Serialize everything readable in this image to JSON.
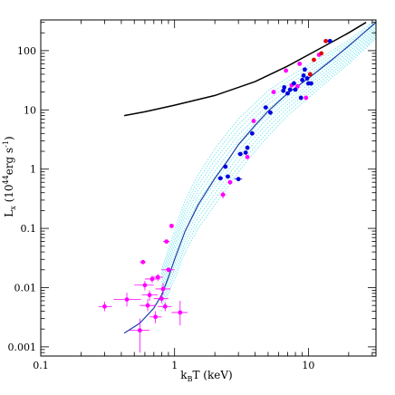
{
  "chart_data": {
    "type": "scatter",
    "xlabel_main": "k",
    "xlabel_sub": "B",
    "xlabel_rest": "T (keV)",
    "ylabel_main": "L",
    "ylabel_sub": "x",
    "ylabel_rest": " (10",
    "ylabel_sup": "44",
    "ylabel_unit": "erg  s",
    "ylabel_sup2": "-1",
    "ylabel_close": ")",
    "xscale": "log",
    "yscale": "log",
    "xlim": [
      0.1,
      32
    ],
    "ylim": [
      0.0007,
      330
    ],
    "x_ticks": [
      {
        "v": 0.1,
        "label": "0.1"
      },
      {
        "v": 1,
        "label": "1"
      },
      {
        "v": 10,
        "label": "10"
      }
    ],
    "y_ticks": [
      {
        "v": 0.001,
        "label": "0.001"
      },
      {
        "v": 0.01,
        "label": "0.01"
      },
      {
        "v": 0.1,
        "label": "0.1"
      },
      {
        "v": 1,
        "label": "1"
      },
      {
        "v": 10,
        "label": "10"
      },
      {
        "v": 100,
        "label": "100"
      }
    ],
    "colors": {
      "magenta": "#ff00ff",
      "blue": "#0000e0",
      "red": "#e00000",
      "black_curve": "#000000",
      "model_curve": "#1a3fa8",
      "band": "#33d6e6"
    },
    "curves": [
      {
        "color": "black",
        "x": [
          0.42,
          0.6,
          1,
          2,
          4,
          7,
          10,
          15,
          20,
          27
        ],
        "y": [
          8,
          9.3,
          12,
          17.5,
          30,
          55,
          85,
          140,
          200,
          300
        ]
      },
      {
        "color": "model",
        "x": [
          0.42,
          0.55,
          0.7,
          0.8,
          0.9,
          1.0,
          1.2,
          1.5,
          2.0,
          2.5,
          3,
          4,
          5,
          7,
          10,
          15,
          20,
          32
        ],
        "y": [
          0.0017,
          0.0025,
          0.0045,
          0.0075,
          0.015,
          0.03,
          0.09,
          0.25,
          0.7,
          1.4,
          2.6,
          5.5,
          9.5,
          19,
          34,
          70,
          120,
          300
        ]
      }
    ],
    "band": {
      "upper": {
        "x": [
          0.8,
          0.9,
          1.0,
          1.2,
          1.5,
          2.0,
          2.5,
          3,
          4,
          5,
          7,
          10,
          15,
          20,
          32
        ],
        "y": [
          0.02,
          0.045,
          0.09,
          0.3,
          0.8,
          2.2,
          4.2,
          7,
          13,
          21,
          35,
          57,
          100,
          150,
          330
        ]
      },
      "lower": {
        "x": [
          0.8,
          0.9,
          1.0,
          1.2,
          1.5,
          2.0,
          2.5,
          3,
          4,
          5,
          7,
          10,
          15,
          20,
          32
        ],
        "y": [
          0.004,
          0.008,
          0.014,
          0.04,
          0.1,
          0.25,
          0.5,
          0.9,
          2.0,
          3.6,
          8,
          16,
          35,
          60,
          160
        ]
      }
    },
    "points": [
      {
        "x": 0.3,
        "y": 0.0048,
        "xe": [
          0.27,
          0.34
        ],
        "ye": [
          0.004,
          0.0058
        ],
        "c": "magenta"
      },
      {
        "x": 0.44,
        "y": 0.0063,
        "xe": [
          0.35,
          0.56
        ],
        "ye": [
          0.0048,
          0.0082
        ],
        "c": "magenta"
      },
      {
        "x": 0.55,
        "y": 0.0019,
        "xe": [
          0.46,
          0.65
        ],
        "ye": [
          0.0008,
          0.003
        ],
        "c": "magenta"
      },
      {
        "x": 0.58,
        "y": 0.027,
        "xe": [
          0.55,
          0.61
        ],
        "ye": [
          0.025,
          0.029
        ],
        "c": "magenta"
      },
      {
        "x": 0.6,
        "y": 0.011,
        "xe": [
          0.5,
          0.7
        ],
        "ye": [
          0.009,
          0.013
        ],
        "c": "magenta"
      },
      {
        "x": 0.63,
        "y": 0.005,
        "xe": [
          0.55,
          0.72
        ],
        "ye": [
          0.004,
          0.0065
        ],
        "c": "magenta"
      },
      {
        "x": 0.65,
        "y": 0.0075,
        "xe": [
          0.57,
          0.75
        ],
        "ye": [
          0.006,
          0.009
        ],
        "c": "magenta"
      },
      {
        "x": 0.68,
        "y": 0.014,
        "xe": [
          0.6,
          0.78
        ],
        "ye": [
          0.012,
          0.016
        ],
        "c": "magenta"
      },
      {
        "x": 0.72,
        "y": 0.0032,
        "xe": [
          0.65,
          0.8
        ],
        "ye": [
          0.0025,
          0.004
        ],
        "c": "magenta"
      },
      {
        "x": 0.75,
        "y": 0.015,
        "xe": [
          0.68,
          0.82
        ],
        "ye": [
          0.013,
          0.017
        ],
        "c": "magenta"
      },
      {
        "x": 0.8,
        "y": 0.0065,
        "xe": [
          0.7,
          0.9
        ],
        "ye": [
          0.0055,
          0.0075
        ],
        "c": "magenta"
      },
      {
        "x": 0.82,
        "y": 0.0095,
        "xe": [
          0.72,
          0.93
        ],
        "ye": [
          0.0075,
          0.012
        ],
        "c": "magenta"
      },
      {
        "x": 0.85,
        "y": 0.0048,
        "xe": [
          0.75,
          0.95
        ],
        "ye": [
          0.004,
          0.0056
        ],
        "c": "magenta"
      },
      {
        "x": 0.87,
        "y": 0.06,
        "xe": [
          0.82,
          0.92
        ],
        "ye": [
          0.057,
          0.063
        ],
        "c": "magenta"
      },
      {
        "x": 0.9,
        "y": 0.02,
        "xe": [
          0.8,
          1.0
        ],
        "ye": [
          0.018,
          0.022
        ],
        "c": "magenta"
      },
      {
        "x": 0.95,
        "y": 0.11,
        "xe": [
          0.92,
          0.98
        ],
        "ye": [
          0.105,
          0.115
        ],
        "c": "magenta"
      },
      {
        "x": 1.1,
        "y": 0.0038,
        "xe": [
          0.95,
          1.25
        ],
        "ye": [
          0.0023,
          0.006
        ],
        "c": "magenta"
      },
      {
        "x": 2.2,
        "y": 0.7,
        "xe": [
          2.1,
          2.3
        ],
        "ye": [
          0.66,
          0.74
        ],
        "c": "blue"
      },
      {
        "x": 2.3,
        "y": 0.37,
        "xe": [
          2.2,
          2.4
        ],
        "ye": [
          0.32,
          0.42
        ],
        "c": "magenta"
      },
      {
        "x": 2.4,
        "y": 1.1,
        "xe": [
          2.3,
          2.5
        ],
        "ye": [
          1.05,
          1.15
        ],
        "c": "blue"
      },
      {
        "x": 2.5,
        "y": 0.75,
        "xe": [
          2.4,
          2.6
        ],
        "ye": [
          0.7,
          0.8
        ],
        "c": "blue"
      },
      {
        "x": 2.6,
        "y": 0.6,
        "xe": [
          2.5,
          2.7
        ],
        "ye": [
          0.55,
          0.65
        ],
        "c": "magenta"
      },
      {
        "x": 3.0,
        "y": 0.68,
        "xe": [
          2.8,
          3.2
        ],
        "ye": [
          0.64,
          0.72
        ],
        "c": "blue"
      },
      {
        "x": 3.1,
        "y": 1.8,
        "xe": [
          2.95,
          3.25
        ],
        "ye": [
          1.7,
          1.9
        ],
        "c": "blue"
      },
      {
        "x": 3.4,
        "y": 1.9,
        "xe": [
          3.3,
          3.5
        ],
        "ye": [
          1.8,
          2.0
        ],
        "c": "blue"
      },
      {
        "x": 3.5,
        "y": 2.3,
        "xe": [
          3.4,
          3.6
        ],
        "ye": [
          2.2,
          2.4
        ],
        "c": "blue"
      },
      {
        "x": 3.5,
        "y": 1.6,
        "xe": [
          3.4,
          3.6
        ],
        "ye": [
          1.5,
          1.7
        ],
        "c": "magenta"
      },
      {
        "x": 3.8,
        "y": 4.0,
        "xe": [
          3.7,
          3.9
        ],
        "ye": [
          3.8,
          4.2
        ],
        "c": "blue"
      },
      {
        "x": 3.9,
        "y": 6.5,
        "xe": [
          3.8,
          4.0
        ],
        "ye": [
          6.2,
          6.8
        ],
        "c": "magenta"
      },
      {
        "x": 4.8,
        "y": 11,
        "xe": [
          4.6,
          5.0
        ],
        "ye": [
          10.5,
          11.5
        ],
        "c": "blue"
      },
      {
        "x": 5.2,
        "y": 9,
        "xe": [
          5.0,
          5.4
        ],
        "ye": [
          8.5,
          9.5
        ],
        "c": "blue"
      },
      {
        "x": 5.5,
        "y": 20,
        "xe": [
          5.3,
          5.7
        ],
        "ye": [
          19,
          21
        ],
        "c": "magenta"
      },
      {
        "x": 6.5,
        "y": 21,
        "xe": [
          6.3,
          6.7
        ],
        "ye": [
          20,
          22
        ],
        "c": "blue"
      },
      {
        "x": 6.6,
        "y": 24,
        "xe": [
          6.4,
          6.8
        ],
        "ye": [
          23,
          25
        ],
        "c": "blue"
      },
      {
        "x": 6.8,
        "y": 46,
        "xe": [
          6.6,
          7.0
        ],
        "ye": [
          44,
          48
        ],
        "c": "magenta"
      },
      {
        "x": 7.0,
        "y": 19,
        "xe": [
          6.8,
          7.2
        ],
        "ye": [
          18,
          20
        ],
        "c": "blue"
      },
      {
        "x": 7.3,
        "y": 22,
        "xe": [
          7.1,
          7.5
        ],
        "ye": [
          21,
          23
        ],
        "c": "blue"
      },
      {
        "x": 7.5,
        "y": 26,
        "xe": [
          7.3,
          7.7
        ],
        "ye": [
          25,
          27
        ],
        "c": "magenta"
      },
      {
        "x": 7.8,
        "y": 28,
        "xe": [
          7.6,
          8.0
        ],
        "ye": [
          27,
          29
        ],
        "c": "blue"
      },
      {
        "x": 8.0,
        "y": 22,
        "xe": [
          7.8,
          8.2
        ],
        "ye": [
          21,
          23
        ],
        "c": "blue"
      },
      {
        "x": 8.3,
        "y": 25,
        "xe": [
          8.1,
          8.5
        ],
        "ye": [
          24,
          26
        ],
        "c": "magenta"
      },
      {
        "x": 8.6,
        "y": 60,
        "xe": [
          8.4,
          8.8
        ],
        "ye": [
          57,
          63
        ],
        "c": "magenta"
      },
      {
        "x": 8.8,
        "y": 16,
        "xe": [
          8.6,
          9.0
        ],
        "ye": [
          15,
          17
        ],
        "c": "blue"
      },
      {
        "x": 9.0,
        "y": 32,
        "xe": [
          8.7,
          9.3
        ],
        "ye": [
          30,
          34
        ],
        "c": "blue"
      },
      {
        "x": 9.2,
        "y": 38,
        "xe": [
          8.9,
          9.5
        ],
        "ye": [
          36,
          40
        ],
        "c": "blue"
      },
      {
        "x": 9.4,
        "y": 48,
        "xe": [
          9.1,
          9.7
        ],
        "ye": [
          46,
          50
        ],
        "c": "blue"
      },
      {
        "x": 9.6,
        "y": 16,
        "xe": [
          9.4,
          9.8
        ],
        "ye": [
          15,
          17
        ],
        "c": "magenta"
      },
      {
        "x": 9.8,
        "y": 34,
        "xe": [
          9.5,
          10.1
        ],
        "ye": [
          32,
          36
        ],
        "c": "blue"
      },
      {
        "x": 10.0,
        "y": 28,
        "xe": [
          9.7,
          10.3
        ],
        "ye": [
          27,
          29
        ],
        "c": "blue"
      },
      {
        "x": 10.3,
        "y": 40,
        "xe": [
          10.0,
          10.6
        ],
        "ye": [
          38,
          42
        ],
        "c": "red"
      },
      {
        "x": 10.5,
        "y": 28,
        "xe": [
          10.2,
          10.8
        ],
        "ye": [
          27,
          29
        ],
        "c": "blue"
      },
      {
        "x": 11.0,
        "y": 70,
        "xe": [
          10.7,
          11.3
        ],
        "ye": [
          67,
          73
        ],
        "c": "red"
      },
      {
        "x": 12.0,
        "y": 85,
        "xe": [
          11.7,
          12.3
        ],
        "ye": [
          82,
          88
        ],
        "c": "magenta"
      },
      {
        "x": 12.5,
        "y": 90,
        "xe": [
          12.2,
          12.8
        ],
        "ye": [
          87,
          93
        ],
        "c": "red"
      },
      {
        "x": 13.5,
        "y": 145,
        "xe": [
          13.0,
          14.0
        ],
        "ye": [
          140,
          150
        ],
        "c": "red"
      },
      {
        "x": 14.5,
        "y": 145,
        "xe": [
          14.0,
          15.0
        ],
        "ye": [
          140,
          150
        ],
        "c": "blue"
      }
    ]
  }
}
